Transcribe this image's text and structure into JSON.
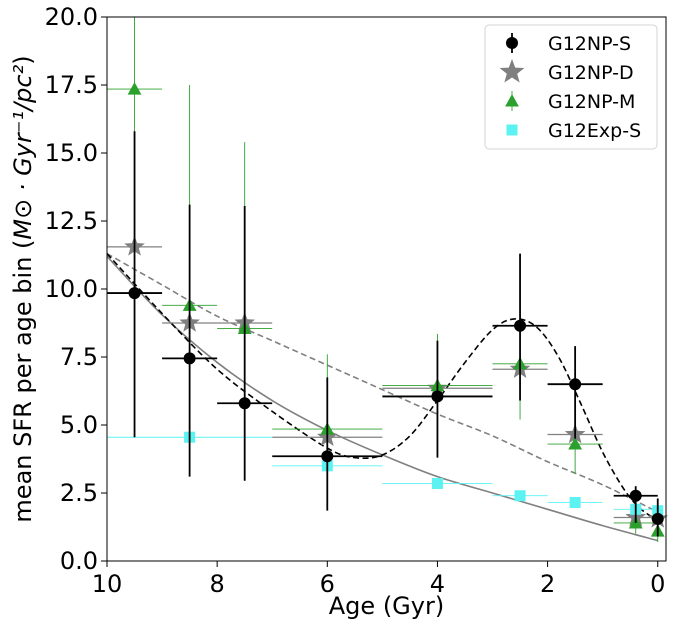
{
  "chart_data": {
    "type": "scatter",
    "xlabel": "Age (Gyr)",
    "ylabel_prefix": "mean SFR per age bin (",
    "ylabel_math": "M⊙ · Gyr⁻¹/pc²",
    "ylabel_suffix": ")",
    "xlim": [
      10,
      -0.15
    ],
    "ylim": [
      0,
      20
    ],
    "x_ticks": [
      10,
      8,
      6,
      4,
      2,
      0
    ],
    "x_tick_labels": [
      "10",
      "8",
      "6",
      "4",
      "2",
      "0"
    ],
    "y_ticks": [
      0,
      2.5,
      5,
      7.5,
      10,
      12.5,
      15,
      17.5,
      20
    ],
    "y_tick_labels": [
      "0.0",
      "2.5",
      "5.0",
      "7.5",
      "10.0",
      "12.5",
      "15.0",
      "17.5",
      "20.0"
    ],
    "grid": false,
    "legend_position": "top-right",
    "series": [
      {
        "name": "G12NP-S",
        "marker": "circle",
        "color": "#000000",
        "points": [
          {
            "x": 9.5,
            "y": 9.85,
            "xerr": 0.5,
            "ylo": 4.55,
            "yhi": 15.8
          },
          {
            "x": 8.5,
            "y": 7.45,
            "xerr": 0.5,
            "ylo": 3.1,
            "yhi": 13.1
          },
          {
            "x": 7.5,
            "y": 5.8,
            "xerr": 0.5,
            "ylo": 2.95,
            "yhi": 13.05
          },
          {
            "x": 6.0,
            "y": 3.85,
            "xerr": 1.0,
            "ylo": 1.85,
            "yhi": 6.75
          },
          {
            "x": 4.0,
            "y": 6.05,
            "xerr": 1.0,
            "ylo": 3.8,
            "yhi": 8.1
          },
          {
            "x": 2.5,
            "y": 8.65,
            "xerr": 0.5,
            "ylo": 5.9,
            "yhi": 11.3
          },
          {
            "x": 1.5,
            "y": 6.5,
            "xerr": 0.5,
            "ylo": 4.5,
            "yhi": 7.9
          },
          {
            "x": 0.4,
            "y": 2.4,
            "xerr": 0.4,
            "ylo": 1.4,
            "yhi": 2.75
          },
          {
            "x": 0.0,
            "y": 1.55,
            "xerr": 0.0,
            "ylo": 0.9,
            "yhi": 2.3
          }
        ]
      },
      {
        "name": "G12NP-D",
        "marker": "star",
        "color": "#808080",
        "points": [
          {
            "x": 9.5,
            "y": 11.55,
            "xerr": 0.5
          },
          {
            "x": 8.5,
            "y": 8.75,
            "xerr": 0.5
          },
          {
            "x": 7.5,
            "y": 8.75,
            "xerr": 0.5
          },
          {
            "x": 6.0,
            "y": 4.55,
            "xerr": 1.0
          },
          {
            "x": 4.0,
            "y": 6.35,
            "xerr": 1.0
          },
          {
            "x": 2.5,
            "y": 7.05,
            "xerr": 0.5
          },
          {
            "x": 1.5,
            "y": 4.65,
            "xerr": 0.5
          },
          {
            "x": 0.4,
            "y": 1.6,
            "xerr": 0.4
          },
          {
            "x": 0.0,
            "y": 1.55,
            "xerr": 0.0
          }
        ]
      },
      {
        "name": "G12NP-M",
        "marker": "triangle",
        "color": "#2ca02c",
        "points": [
          {
            "x": 9.5,
            "y": 17.35,
            "xerr": 0.5,
            "ylo": 5.9,
            "yhi": 20.0
          },
          {
            "x": 8.5,
            "y": 9.4,
            "xerr": 0.5,
            "ylo": 5.0,
            "yhi": 17.5
          },
          {
            "x": 7.5,
            "y": 8.55,
            "xerr": 0.5,
            "ylo": 3.8,
            "yhi": 15.4
          },
          {
            "x": 6.0,
            "y": 4.85,
            "xerr": 1.0,
            "ylo": 3.7,
            "yhi": 7.6
          },
          {
            "x": 4.0,
            "y": 6.45,
            "xerr": 1.0,
            "ylo": 5.5,
            "yhi": 8.35
          },
          {
            "x": 2.5,
            "y": 7.25,
            "xerr": 0.5,
            "ylo": 5.2,
            "yhi": 8.6
          },
          {
            "x": 1.5,
            "y": 4.3,
            "xerr": 0.5,
            "ylo": 3.2,
            "yhi": 5.2
          },
          {
            "x": 0.4,
            "y": 1.4,
            "xerr": 0.4,
            "ylo": 1.0,
            "yhi": 2.0
          },
          {
            "x": 0.0,
            "y": 1.1,
            "xerr": 0.0,
            "ylo": 0.7,
            "yhi": 1.5
          }
        ]
      },
      {
        "name": "G12Exp-S",
        "marker": "square",
        "color": "#5cf2f2",
        "points": [
          {
            "x": 8.5,
            "y": 4.55,
            "xerr": 1.5
          },
          {
            "x": 6.0,
            "y": 3.5,
            "xerr": 1.0
          },
          {
            "x": 4.0,
            "y": 2.85,
            "xerr": 1.0
          },
          {
            "x": 2.5,
            "y": 2.4,
            "xerr": 0.5
          },
          {
            "x": 1.5,
            "y": 2.15,
            "xerr": 0.5
          },
          {
            "x": 0.4,
            "y": 1.9,
            "xerr": 0.4
          },
          {
            "x": 0.0,
            "y": 1.85,
            "xerr": 0.0
          }
        ]
      }
    ],
    "curves": [
      {
        "name": "",
        "style": "solid",
        "color": "#808080",
        "x": [
          10,
          9,
          8,
          7,
          6,
          5,
          4,
          3,
          2,
          1,
          0
        ],
        "y": [
          11.2,
          9.05,
          7.3,
          5.9,
          4.8,
          3.9,
          3.1,
          2.5,
          1.9,
          1.3,
          0.75
        ]
      },
      {
        "name": "",
        "style": "dashed",
        "color": "#808080",
        "x": [
          10,
          9,
          8,
          7,
          6,
          5,
          4,
          3,
          2,
          1,
          0
        ],
        "y": [
          11.3,
          10.15,
          9.0,
          8.1,
          7.2,
          6.3,
          5.4,
          4.6,
          3.65,
          2.8,
          1.8
        ]
      },
      {
        "name": "",
        "style": "dashed",
        "color": "#000000",
        "x": [
          10,
          9,
          8,
          7,
          6,
          5.5,
          5,
          4.5,
          4,
          3.5,
          3,
          2.6,
          2.2,
          1.8,
          1.4,
          1,
          0.6,
          0.3,
          0
        ],
        "y": [
          11.3,
          9.1,
          7.05,
          5.5,
          4.15,
          3.8,
          3.9,
          4.6,
          5.9,
          7.3,
          8.5,
          8.9,
          8.6,
          7.5,
          5.8,
          4.0,
          2.6,
          1.9,
          1.5
        ]
      }
    ]
  }
}
